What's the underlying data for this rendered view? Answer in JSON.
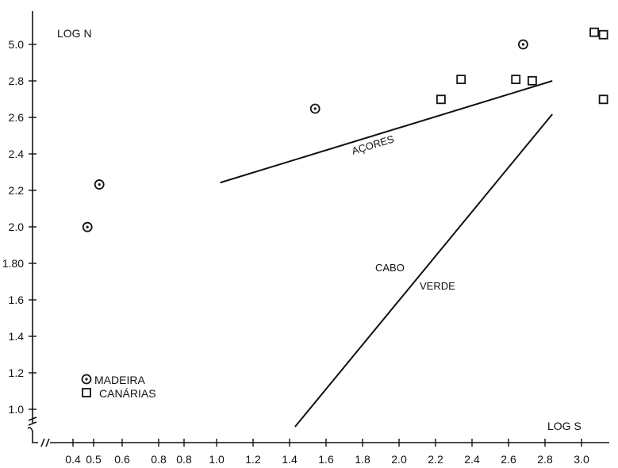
{
  "chart_data": {
    "type": "scatter",
    "title": "",
    "xlabel": "LOG S",
    "ylabel": "LOG N",
    "x_ticks": [
      "0.4",
      "0.5",
      "0.6",
      "0.8",
      "0.8",
      "1.0",
      "1.2",
      "1.4",
      "1.6",
      "1.8",
      "2.0",
      "2.2",
      "2.4",
      "2.6",
      "2.8",
      "3.0"
    ],
    "y_ticks": [
      "5.0",
      "2.8",
      "2.8",
      "2.6",
      "2.4",
      "2.2",
      "2.0",
      "1.80",
      "1.6",
      "1.4",
      "1.2",
      "1.0"
    ],
    "grid": false,
    "legend_position": "bottom-left",
    "series": [
      {
        "name": "MADEIRA",
        "marker": "circle-dot",
        "points": [
          {
            "x": 0.47,
            "y": 2.01
          },
          {
            "x": 0.52,
            "y": 2.24
          },
          {
            "x": 1.54,
            "y": 2.65
          },
          {
            "x": 2.68,
            "y": 5.0
          }
        ]
      },
      {
        "name": "CANÁRIAS",
        "marker": "square",
        "points": [
          {
            "x": 2.23,
            "y": 2.7
          },
          {
            "x": 2.34,
            "y": 2.89
          },
          {
            "x": 2.64,
            "y": 2.89
          },
          {
            "x": 2.73,
            "y": 2.81
          },
          {
            "x": 3.07,
            "y": 5.1
          },
          {
            "x": 3.12,
            "y": 5.08
          },
          {
            "x": 3.12,
            "y": 2.7
          }
        ]
      }
    ],
    "lines": [
      {
        "label": "AÇORES",
        "x1": 1.02,
        "y1": 2.25,
        "x2": 2.84,
        "y2": 2.8
      },
      {
        "label_top": "CABO",
        "label_bottom": "VERDE",
        "x1": 1.43,
        "y1": 0.93,
        "x2": 2.84,
        "y2": 2.62
      }
    ]
  }
}
